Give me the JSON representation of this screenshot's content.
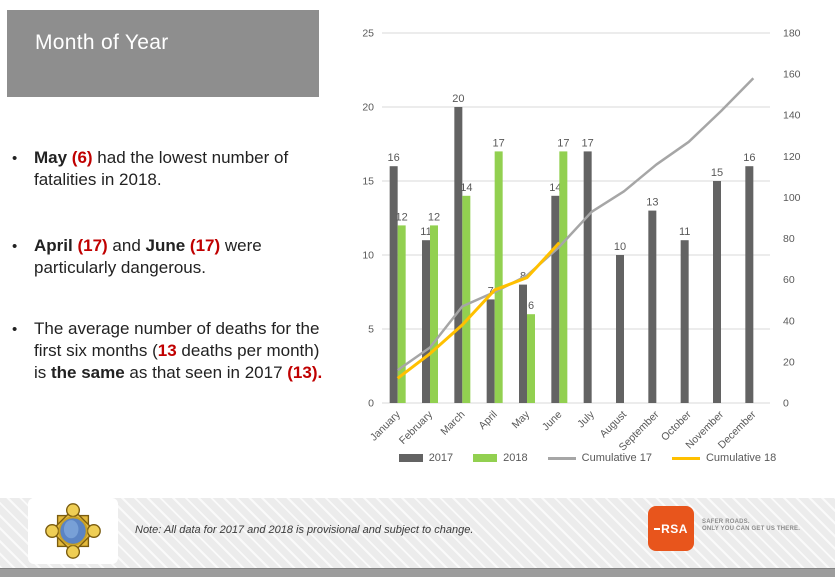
{
  "slide": {
    "title": "Month of Year",
    "bullets": [
      {
        "segments": [
          {
            "t": "May ",
            "b": true
          },
          {
            "t": "(6)",
            "red": true
          },
          {
            "t": " had the lowest number of fatalities in 2018."
          }
        ]
      },
      {
        "segments": [
          {
            "t": "April ",
            "b": true
          },
          {
            "t": "(17)",
            "red": true
          },
          {
            "t": " and "
          },
          {
            "t": "June ",
            "b": true
          },
          {
            "t": "(17)",
            "red": true
          },
          {
            "t": " were particularly dangerous."
          }
        ]
      },
      {
        "segments": [
          {
            "t": "The average number of deaths for the first six months ("
          },
          {
            "t": "13",
            "red": true
          },
          {
            "t": " deaths per month) is "
          },
          {
            "t": "the same",
            "b": true
          },
          {
            "t": " as that seen in 2017 "
          },
          {
            "t": "(13).",
            "red": true
          }
        ]
      }
    ]
  },
  "chart_data": {
    "type": "bar",
    "subtype": "bar-line-combo",
    "categories": [
      "January",
      "February",
      "March",
      "April",
      "May",
      "June",
      "July",
      "August",
      "September",
      "October",
      "November",
      "December"
    ],
    "series": [
      {
        "name": "2017",
        "type": "bar",
        "axis": "left",
        "color": "#636363",
        "values": [
          16,
          11,
          20,
          7,
          8,
          14,
          17,
          10,
          13,
          11,
          15,
          16
        ]
      },
      {
        "name": "2018",
        "type": "bar",
        "axis": "left",
        "color": "#92D050",
        "values": [
          12,
          12,
          14,
          17,
          6,
          17,
          null,
          null,
          null,
          null,
          null,
          null
        ]
      },
      {
        "name": "Cumulative 17",
        "type": "line",
        "axis": "right",
        "color": "#A6A6A6",
        "values": [
          16,
          27,
          47,
          54,
          62,
          76,
          93,
          103,
          116,
          127,
          142,
          158
        ]
      },
      {
        "name": "Cumulative 18",
        "type": "line",
        "axis": "right",
        "color": "#FFC000",
        "values": [
          12,
          24,
          38,
          55,
          61,
          78,
          null,
          null,
          null,
          null,
          null,
          null
        ]
      }
    ],
    "title": "",
    "xlabel": "",
    "ylabel": "",
    "left_axis": {
      "min": 0,
      "max": 25,
      "step": 5
    },
    "right_axis": {
      "min": 0,
      "max": 180,
      "step": 20
    },
    "grid": true,
    "gridline_color": "#D9D9D9",
    "legend_position": "bottom",
    "data_labels": true
  },
  "footer": {
    "note": "Note: All data for 2017 and 2018 is provisional and subject to change.",
    "garda_logo": "garda-siochana-crest",
    "rsa_logo_text": "RSA",
    "rsa_tagline_line1": "SAFER ROADS.",
    "rsa_tagline_line2": "ONLY YOU CAN GET US THERE."
  },
  "colors": {
    "title_box": "#8E8E8E",
    "accent_red": "#C00000",
    "bar_2017": "#636363",
    "bar_2018": "#92D050",
    "line_cum17": "#A6A6A6",
    "line_cum18": "#FFC000",
    "rsa_orange": "#E8551C",
    "footer_band": "#ECECEC",
    "bottom_bar": "#9C9C9C"
  }
}
